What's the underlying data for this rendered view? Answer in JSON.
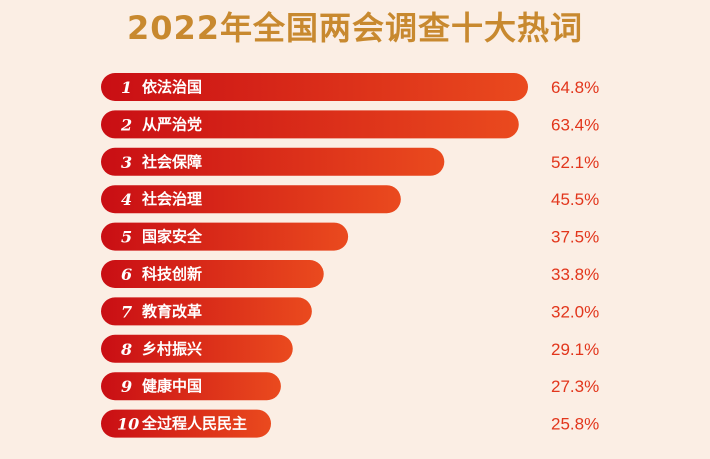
{
  "header": {
    "title": "2022年全国两会调查十大热词"
  },
  "colors": {
    "background": "#fbeee4",
    "bar_dark": "#c90e14",
    "bar_light": "#ea4a1e",
    "title": "#c8892f",
    "value_text": "#e2361c"
  },
  "chart_data": {
    "type": "bar",
    "orientation": "horizontal",
    "title": "2022年全国两会调查十大热词",
    "categories": [
      "依法治国",
      "从严治党",
      "社会保障",
      "社会治理",
      "国家安全",
      "科技创新",
      "教育改革",
      "乡村振兴",
      "健康中国",
      "全过程人民民主"
    ],
    "ranks": [
      "1",
      "2",
      "3",
      "4",
      "5",
      "6",
      "7",
      "8",
      "9",
      "10"
    ],
    "values": [
      64.8,
      63.4,
      52.1,
      45.5,
      37.5,
      33.8,
      32.0,
      29.1,
      27.3,
      25.8
    ],
    "value_labels": [
      "64.8%",
      "63.4%",
      "52.1%",
      "45.5%",
      "37.5%",
      "33.8%",
      "32.0%",
      "29.1%",
      "27.3%",
      "25.8%"
    ],
    "grid": false,
    "legend": "none"
  }
}
